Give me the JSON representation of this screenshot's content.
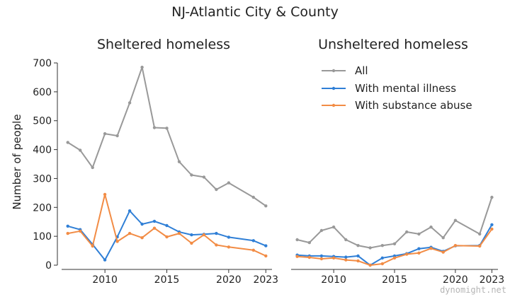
{
  "figure": {
    "title": "NJ-Atlantic City & County",
    "ylabel": "Number of people",
    "watermark": "dynomight.net"
  },
  "legend": {
    "entries": [
      {
        "label": "All",
        "color": "#999999"
      },
      {
        "label": "With mental illness",
        "color": "#2f7fd6"
      },
      {
        "label": "With substance abuse",
        "color": "#f28c45"
      }
    ]
  },
  "chart_data": [
    {
      "type": "line",
      "title": "Sheltered homeless",
      "xlim": [
        2006.5,
        2023.5
      ],
      "ylim": [
        0,
        700
      ],
      "xticks": [
        2010,
        2015,
        2020,
        2023
      ],
      "yticks": [
        0,
        100,
        200,
        300,
        400,
        500,
        600,
        700
      ],
      "x": [
        2007,
        2008,
        2009,
        2010,
        2011,
        2012,
        2013,
        2014,
        2015,
        2016,
        2017,
        2018,
        2019,
        2020,
        2022,
        2023
      ],
      "series": [
        {
          "name": "All",
          "color": "#999999",
          "values": [
            425,
            398,
            338,
            455,
            448,
            562,
            685,
            476,
            474,
            358,
            312,
            305,
            262,
            285,
            235,
            205
          ]
        },
        {
          "name": "With mental illness",
          "color": "#2f7fd6",
          "values": [
            135,
            123,
            72,
            18,
            98,
            188,
            142,
            152,
            137,
            115,
            105,
            107,
            110,
            97,
            85,
            67
          ]
        },
        {
          "name": "With substance abuse",
          "color": "#f28c45",
          "values": [
            110,
            118,
            66,
            245,
            82,
            110,
            95,
            128,
            98,
            110,
            76,
            105,
            70,
            63,
            52,
            32
          ]
        }
      ]
    },
    {
      "type": "line",
      "title": "Unsheltered homeless",
      "xlim": [
        2006.5,
        2023.5
      ],
      "ylim": [
        0,
        700
      ],
      "xticks": [
        2010,
        2015,
        2020,
        2023
      ],
      "yticks": [],
      "x": [
        2007,
        2008,
        2009,
        2010,
        2011,
        2012,
        2013,
        2014,
        2015,
        2016,
        2017,
        2018,
        2019,
        2020,
        2022,
        2023
      ],
      "series": [
        {
          "name": "All",
          "color": "#999999",
          "values": [
            88,
            78,
            120,
            132,
            88,
            68,
            60,
            68,
            74,
            115,
            108,
            132,
            95,
            155,
            108,
            235
          ]
        },
        {
          "name": "With mental illness",
          "color": "#2f7fd6",
          "values": [
            35,
            32,
            32,
            30,
            28,
            32,
            0,
            25,
            32,
            40,
            57,
            62,
            48,
            67,
            68,
            140
          ]
        },
        {
          "name": "With substance abuse",
          "color": "#f28c45",
          "values": [
            30,
            27,
            22,
            25,
            18,
            15,
            0,
            5,
            25,
            38,
            42,
            58,
            45,
            68,
            66,
            125
          ]
        }
      ]
    }
  ]
}
